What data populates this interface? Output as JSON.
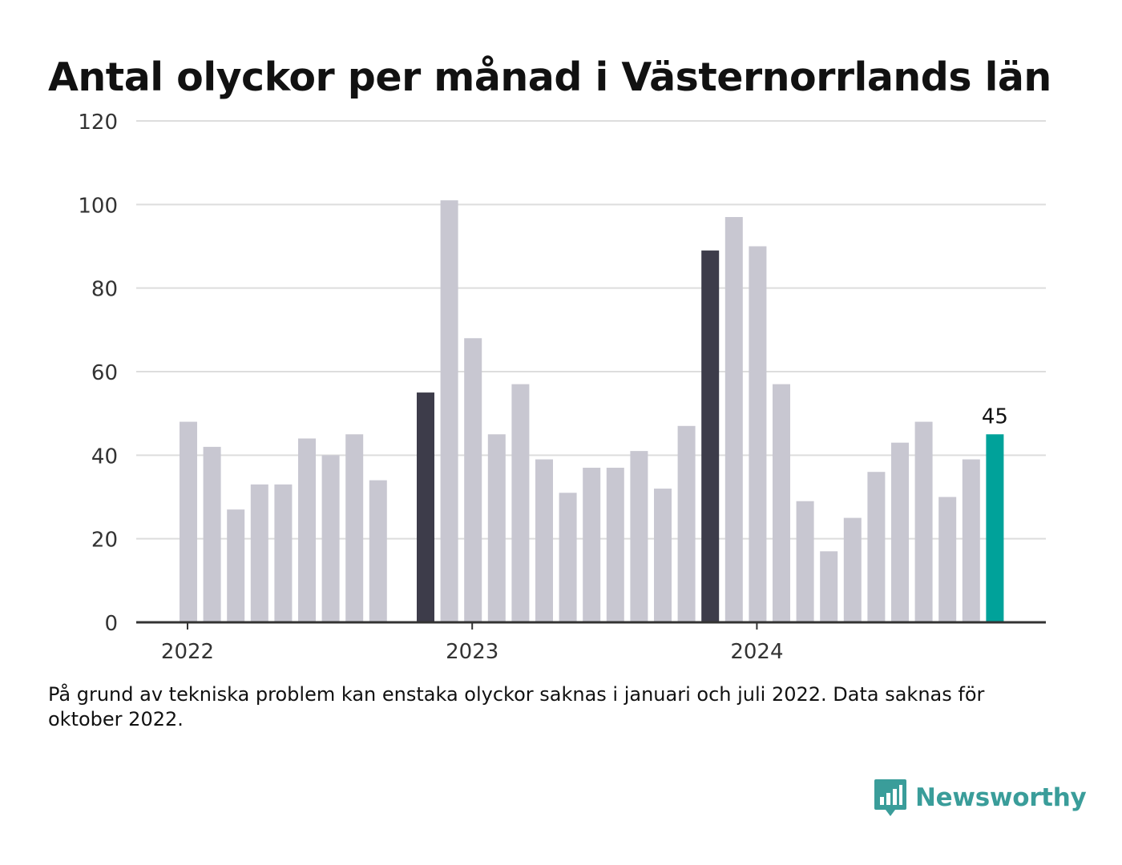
{
  "chart_data": {
    "type": "bar",
    "title": "Antal olyckor per månad i Västernorrlands län",
    "xlabel": "",
    "ylabel": "",
    "ylim": [
      0,
      120
    ],
    "yticks": [
      0,
      20,
      40,
      60,
      80,
      100,
      120
    ],
    "ytick_labels": [
      "0",
      "20",
      "40",
      "60",
      "80",
      "100",
      "120"
    ],
    "xtick_labels": [
      {
        "label": "2022",
        "category": "2022-01"
      },
      {
        "label": "2023",
        "category": "2023-01"
      },
      {
        "label": "2024",
        "category": "2024-01"
      }
    ],
    "grid": true,
    "categories": [
      "2022-01",
      "2022-02",
      "2022-03",
      "2022-04",
      "2022-05",
      "2022-06",
      "2022-07",
      "2022-08",
      "2022-09",
      "2022-10",
      "2022-11",
      "2022-12",
      "2023-01",
      "2023-02",
      "2023-03",
      "2023-04",
      "2023-05",
      "2023-06",
      "2023-07",
      "2023-08",
      "2023-09",
      "2023-10",
      "2023-11",
      "2023-12",
      "2024-01",
      "2024-02",
      "2024-03",
      "2024-04",
      "2024-05",
      "2024-06",
      "2024-07",
      "2024-08",
      "2024-09",
      "2024-10",
      "2024-11",
      "2024-12"
    ],
    "values": [
      48,
      42,
      27,
      33,
      33,
      44,
      40,
      45,
      34,
      null,
      55,
      101,
      68,
      45,
      57,
      39,
      31,
      37,
      37,
      41,
      32,
      47,
      89,
      97,
      90,
      57,
      29,
      17,
      25,
      36,
      43,
      48,
      30,
      39,
      45,
      null
    ],
    "highlight_dark": [
      "2022-11",
      "2023-11"
    ],
    "highlight_latest": "2024-11",
    "data_labels": [
      {
        "category": "2024-11",
        "text": "45"
      }
    ],
    "colors": {
      "default_bar": "#c8c7d1",
      "dark_bar": "#3d3c4a",
      "latest_bar": "#00a29a",
      "gridline": "#dddddd",
      "axis": "#333333"
    }
  },
  "footnote": "På grund av tekniska problem kan enstaka olyckor saknas i januari och juli 2022. Data saknas för oktober 2022.",
  "brand": {
    "name": "Newsworthy",
    "icon": "bar-chart-logo-icon",
    "color": "#3a9d9a"
  }
}
